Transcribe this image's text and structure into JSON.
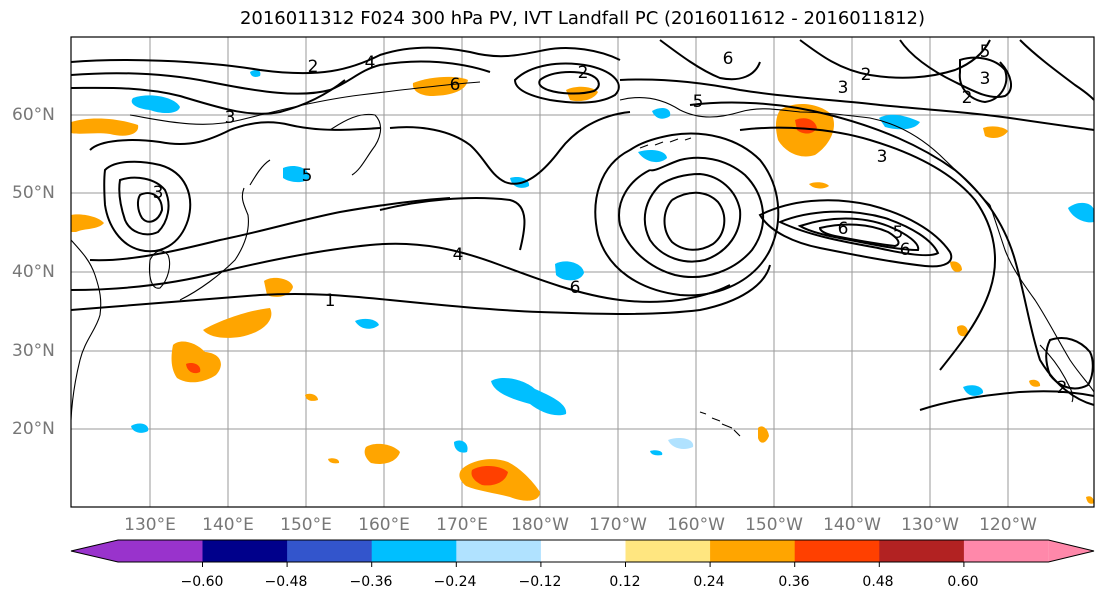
{
  "title": "2016011312 F024 300 hPa PV, IVT Landfall PC (2016011612 - 2016011812)",
  "lat_labels": [
    "60°N",
    "50°N",
    "40°N",
    "30°N",
    "20°N"
  ],
  "lon_labels": [
    "130°E",
    "140°E",
    "150°E",
    "160°E",
    "170°E",
    "180°W",
    "170°W",
    "160°W",
    "150°W",
    "140°W",
    "130°W",
    "120°W"
  ],
  "colorbar": {
    "ticks": [
      "−0.60",
      "−0.48",
      "−0.36",
      "−0.24",
      "−0.12",
      "0.12",
      "0.24",
      "0.36",
      "0.48",
      "0.60"
    ],
    "colors": [
      "#9933cc",
      "#00008b",
      "#3355cc",
      "#00bfff",
      "#b0e2ff",
      "#ffffff",
      "#ffe680",
      "#ffa500",
      "#ff4000",
      "#b22222",
      "#ff88aa"
    ]
  },
  "contour_labels": [
    "1",
    "2",
    "3",
    "4",
    "5",
    "6"
  ],
  "colors": {
    "neg_light": "#b0e2ff",
    "neg_mid": "#00bfff",
    "pos_light": "#ffe680",
    "pos_mid": "#ffa500",
    "pos_strong": "#ff4000"
  }
}
